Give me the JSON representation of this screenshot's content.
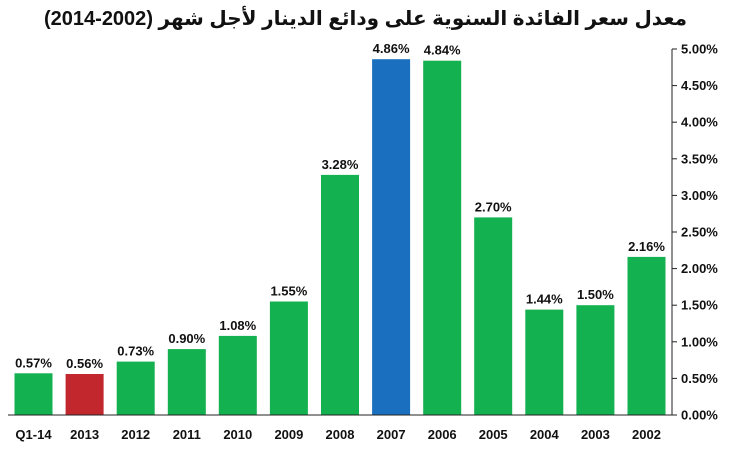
{
  "chart_data": {
    "type": "bar",
    "title": "معدل سعر الفائدة السنوية على ودائع الدينار لأجل شهر (2002-2014)",
    "categories": [
      "Q1-14",
      "2013",
      "2012",
      "2011",
      "2010",
      "2009",
      "2008",
      "2007",
      "2006",
      "2005",
      "2004",
      "2003",
      "2002"
    ],
    "values": [
      0.57,
      0.56,
      0.73,
      0.9,
      1.08,
      1.55,
      3.28,
      4.86,
      4.84,
      2.7,
      1.44,
      1.5,
      2.16
    ],
    "data_labels": [
      "0.57%",
      "0.56%",
      "0.73%",
      "0.90%",
      "1.08%",
      "1.55%",
      "3.28%",
      "4.86%",
      "4.84%",
      "2.70%",
      "1.44%",
      "1.50%",
      "2.16%"
    ],
    "bar_colors": [
      "#13b14f",
      "#c1272d",
      "#13b14f",
      "#13b14f",
      "#13b14f",
      "#13b14f",
      "#13b14f",
      "#1a6fbf",
      "#13b14f",
      "#13b14f",
      "#13b14f",
      "#13b14f",
      "#13b14f"
    ],
    "y_ticks": [
      0,
      0.5,
      1.0,
      1.5,
      2.0,
      2.5,
      3.0,
      3.5,
      4.0,
      4.5,
      5.0
    ],
    "y_tick_labels": [
      "0.00%",
      "0.50%",
      "1.00%",
      "1.50%",
      "2.00%",
      "2.50%",
      "3.00%",
      "3.50%",
      "4.00%",
      "4.50%",
      "5.00%"
    ],
    "ylim": [
      0,
      5.0
    ],
    "y_axis_side": "right",
    "grid": false,
    "legend": "none"
  }
}
